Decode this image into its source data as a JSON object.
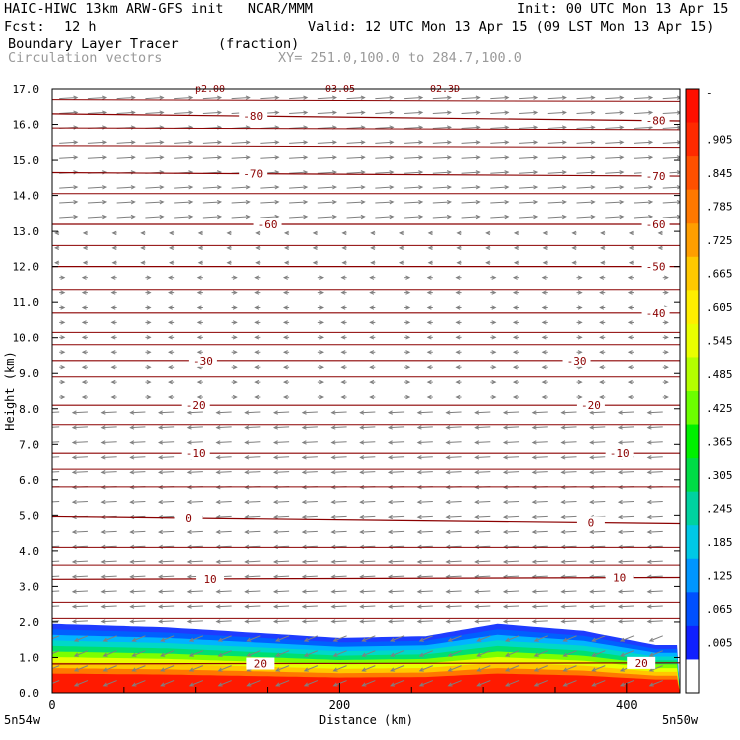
{
  "header": {
    "model_line": "HAIC-HIWC 13km ARW-GFS init   NCAR/MMM",
    "init_line": "Init: 00 UTC Mon 13 Apr 15",
    "fcst_label": "Fcst:",
    "fcst_value": "12 h",
    "valid_line": "Valid: 12 UTC Mon 13 Apr 15 (09 LST Mon 13 Apr 15)",
    "field_name": "Boundary Layer Tracer",
    "field_units": "(fraction)",
    "vector_label": "Circulation vectors",
    "xy_range": "XY= 251.0,100.0 to 284.7,100.0"
  },
  "colors": {
    "contour": "#8b0000",
    "vector": "#7f7f7f",
    "bl_red": "#ff1a00",
    "bl_blue": "#1e3cff"
  },
  "chart_data": {
    "type": "cross-section",
    "title": "Boundary Layer Tracer",
    "xlabel": "Distance (km)",
    "ylabel": "Height (km)",
    "xlim": [
      0,
      437
    ],
    "ylim": [
      0,
      17
    ],
    "x_ticks": [
      "0",
      "200",
      "400"
    ],
    "x_tick_values": [
      0,
      200,
      400
    ],
    "y_ticks": [
      "0.0",
      "1.0",
      "2.0",
      "3.0",
      "4.0",
      "5.0",
      "6.0",
      "7.0",
      "8.0",
      "9.0",
      "10.0",
      "11.0",
      "12.0",
      "13.0",
      "14.0",
      "15.0",
      "16.0",
      "17.0"
    ],
    "x_end_labels": {
      "left": "5n54w",
      "right": "5n50w"
    },
    "top_partial_labels": [
      "p2.00",
      "03.05",
      "02.3D"
    ],
    "colorbar": {
      "labels": [
        "-",
        ".905",
        ".845",
        ".785",
        ".725",
        ".665",
        ".605",
        ".545",
        ".485",
        ".425",
        ".365",
        ".305",
        ".245",
        ".185",
        ".125",
        ".065",
        ".005"
      ],
      "colors": [
        "#ff1000",
        "#ff2a00",
        "#ff5000",
        "#ff7800",
        "#ff9e00",
        "#ffc800",
        "#ffee00",
        "#eaff00",
        "#b4ff00",
        "#6cff00",
        "#00f000",
        "#00dc46",
        "#00d2a0",
        "#00c8e6",
        "#0096ff",
        "#0050ff",
        "#1020ff",
        "#ffffff"
      ]
    },
    "temperature_contours": [
      {
        "label": "-80",
        "height_left": 16.3,
        "height_right": 16.1,
        "label_x": [
          140,
          420
        ]
      },
      {
        "label": "-70",
        "height_left": 14.65,
        "height_right": 14.55,
        "label_x": [
          140,
          420
        ]
      },
      {
        "label": "-60",
        "height_left": 13.2,
        "height_right": 13.2,
        "label_x": [
          150,
          420
        ]
      },
      {
        "label": "-50",
        "height_left": 12.0,
        "height_right": 12.0,
        "label_x": [
          420
        ]
      },
      {
        "label": "-40",
        "height_left": 10.7,
        "height_right": 10.7,
        "label_x": [
          420
        ]
      },
      {
        "label": "-30",
        "height_left": 9.35,
        "height_right": 9.35,
        "label_x": [
          105,
          365
        ]
      },
      {
        "label": "-20",
        "height_left": 8.1,
        "height_right": 8.1,
        "label_x": [
          100,
          375
        ]
      },
      {
        "label": "-10",
        "height_left": 6.75,
        "height_right": 6.75,
        "label_x": [
          100,
          395
        ]
      },
      {
        "label": "0",
        "height_left": 4.97,
        "height_right": 4.77,
        "label_x": [
          95,
          375
        ]
      },
      {
        "label": "10",
        "height_left": 3.2,
        "height_right": 3.25,
        "label_x": [
          110,
          395
        ]
      },
      {
        "label": "20",
        "height_left": 0.82,
        "height_right": 0.85,
        "label_x": [
          145,
          410
        ]
      }
    ],
    "unlabeled_contour_heights": [
      16.7,
      15.9,
      15.4,
      14.05,
      12.6,
      11.35,
      10.15,
      9.8,
      8.9,
      7.55,
      6.3,
      5.8,
      4.1,
      3.6,
      2.55,
      2.1
    ],
    "boundary_layer_top_km": [
      [
        0,
        1.95
      ],
      [
        80,
        1.85
      ],
      [
        200,
        1.55
      ],
      [
        260,
        1.6
      ],
      [
        310,
        1.95
      ],
      [
        370,
        1.75
      ],
      [
        420,
        1.35
      ],
      [
        437,
        1.35
      ]
    ]
  }
}
